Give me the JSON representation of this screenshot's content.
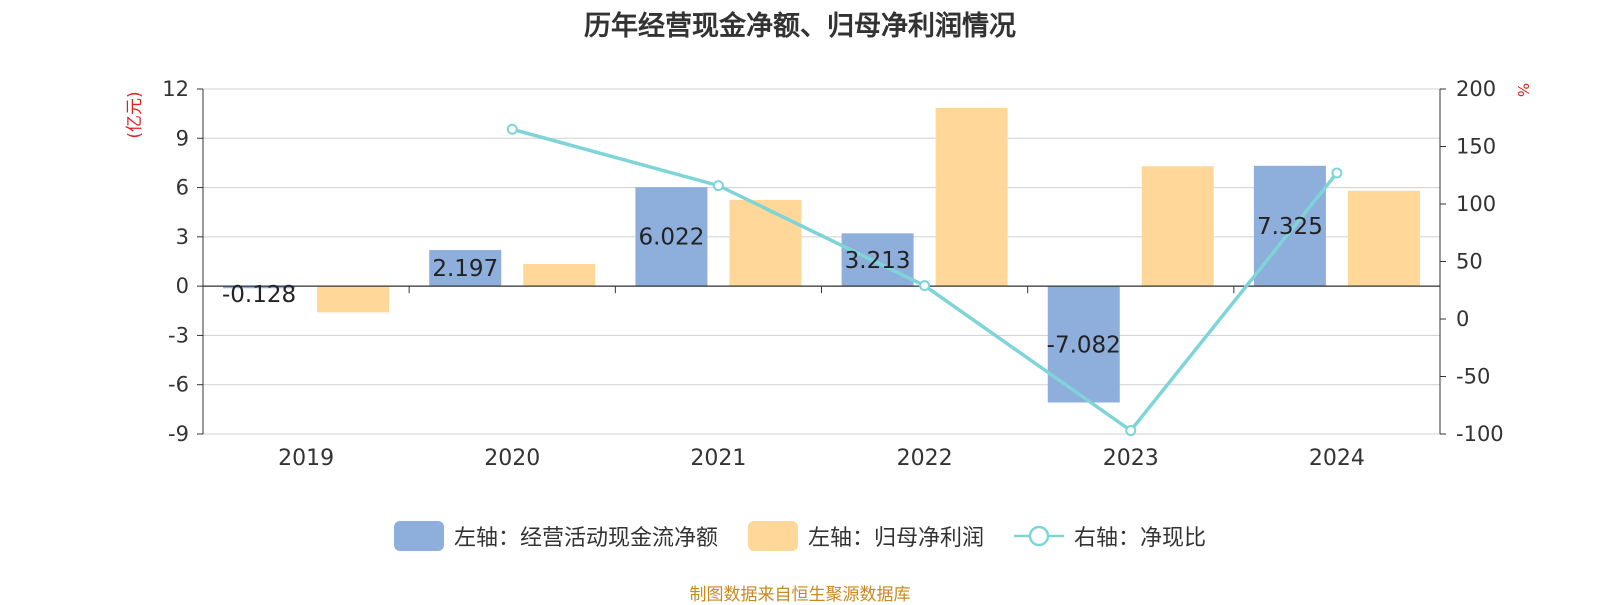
{
  "chart_data": {
    "type": "bar",
    "title": "历年经营现金净额、归母净利润情况",
    "categories": [
      "2019",
      "2020",
      "2021",
      "2022",
      "2023",
      "2024"
    ],
    "left_axis": {
      "label": "(亿元)",
      "min": -9,
      "max": 12,
      "ticks": [
        12,
        9,
        6,
        3,
        0,
        -3,
        -6,
        -9
      ]
    },
    "right_axis": {
      "label": "%",
      "min": -100,
      "max": 200,
      "ticks": [
        200,
        150,
        100,
        50,
        0,
        -50,
        -100
      ]
    },
    "series": [
      {
        "name": "左轴：经营活动现金流净额",
        "type": "bar",
        "axis": "left",
        "color": "#8eaedb",
        "values": [
          -0.128,
          2.197,
          6.022,
          3.213,
          -7.082,
          7.325
        ],
        "labels": [
          "-0.128",
          "2.197",
          "6.022",
          "3.213",
          "-7.082",
          "7.325"
        ]
      },
      {
        "name": "左轴：归母净利润",
        "type": "bar",
        "axis": "left",
        "color": "#ffd899",
        "values": [
          -1.6,
          1.35,
          5.25,
          10.85,
          7.3,
          5.8
        ]
      },
      {
        "name": "右轴：净现比",
        "type": "line",
        "axis": "right",
        "color": "#7fd4d8",
        "values": [
          null,
          165,
          116,
          29,
          -97,
          127
        ]
      }
    ],
    "grid": true,
    "legend_position": "bottom"
  },
  "source_note": "制图数据来自恒生聚源数据库"
}
